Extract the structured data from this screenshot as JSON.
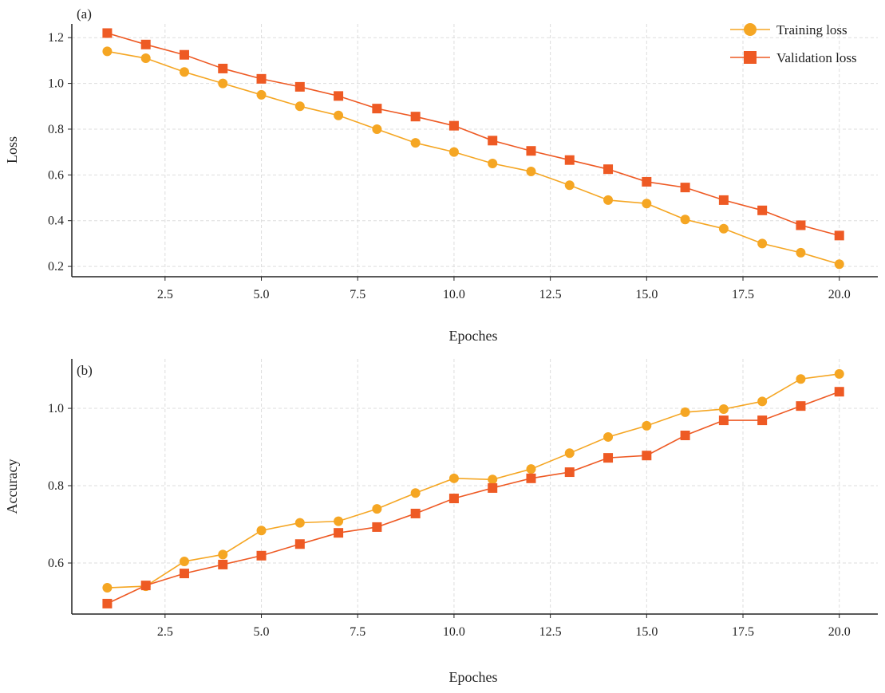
{
  "chart_data": [
    {
      "type": "line",
      "panel_label": "(a)",
      "xlabel": "Epoches",
      "ylabel": "Loss",
      "xlim": [
        0.08,
        21.0
      ],
      "ylim": [
        0.155,
        1.26
      ],
      "xticks": [
        2.5,
        5.0,
        7.5,
        10.0,
        12.5,
        15.0,
        17.5,
        20.0
      ],
      "xtick_labels": [
        "2.5",
        "5.0",
        "7.5",
        "10.0",
        "12.5",
        "15.0",
        "17.5",
        "20.0"
      ],
      "yticks": [
        0.2,
        0.4,
        0.6,
        0.8,
        1.0,
        1.2
      ],
      "ytick_labels": [
        "0.2",
        "0.4",
        "0.6",
        "0.8",
        "1.0",
        "1.2"
      ],
      "grid": true,
      "legend": "top-right",
      "x": [
        1,
        2,
        3,
        4,
        5,
        6,
        7,
        8,
        9,
        10,
        11,
        12,
        13,
        14,
        15,
        16,
        17,
        18,
        19,
        20
      ],
      "series": [
        {
          "name": "Training loss",
          "marker": "circle",
          "color": "#F5A623",
          "values": [
            1.14,
            1.11,
            1.05,
            1.0,
            0.95,
            0.9,
            0.86,
            0.8,
            0.74,
            0.7,
            0.65,
            0.615,
            0.555,
            0.49,
            0.475,
            0.405,
            0.365,
            0.3,
            0.26,
            0.21
          ]
        },
        {
          "name": "Validation loss",
          "marker": "square",
          "color": "#EE5A24",
          "values": [
            1.22,
            1.17,
            1.125,
            1.065,
            1.02,
            0.985,
            0.945,
            0.89,
            0.855,
            0.815,
            0.75,
            0.705,
            0.665,
            0.625,
            0.57,
            0.545,
            0.49,
            0.445,
            0.38,
            0.335
          ]
        }
      ]
    },
    {
      "type": "line",
      "panel_label": "(b)",
      "xlabel": "Epoches",
      "ylabel": "Accuracy",
      "xlim": [
        0.08,
        21.0
      ],
      "ylim": [
        0.468,
        1.128
      ],
      "xticks": [
        2.5,
        5.0,
        7.5,
        10.0,
        12.5,
        15.0,
        17.5,
        20.0
      ],
      "xtick_labels": [
        "2.5",
        "5.0",
        "7.5",
        "10.0",
        "12.5",
        "15.0",
        "17.5",
        "20.0"
      ],
      "yticks": [
        0.6,
        0.8,
        1.0
      ],
      "ytick_labels": [
        "0.6",
        "0.8",
        "1.0"
      ],
      "grid": true,
      "x": [
        1,
        2,
        3,
        4,
        5,
        6,
        7,
        8,
        9,
        10,
        11,
        12,
        13,
        14,
        15,
        16,
        17,
        18,
        19,
        20
      ],
      "series": [
        {
          "marker": "circle",
          "color": "#F5A623",
          "values": [
            0.536,
            0.54,
            0.604,
            0.622,
            0.684,
            0.704,
            0.708,
            0.74,
            0.781,
            0.819,
            0.816,
            0.843,
            0.884,
            0.926,
            0.955,
            0.99,
            0.998,
            1.018,
            1.076,
            1.089
          ]
        },
        {
          "marker": "square",
          "color": "#EE5A24",
          "values": [
            0.495,
            0.542,
            0.573,
            0.596,
            0.619,
            0.649,
            0.678,
            0.693,
            0.728,
            0.767,
            0.794,
            0.819,
            0.835,
            0.872,
            0.878,
            0.93,
            0.969,
            0.969,
            1.006,
            1.043
          ]
        }
      ]
    }
  ]
}
